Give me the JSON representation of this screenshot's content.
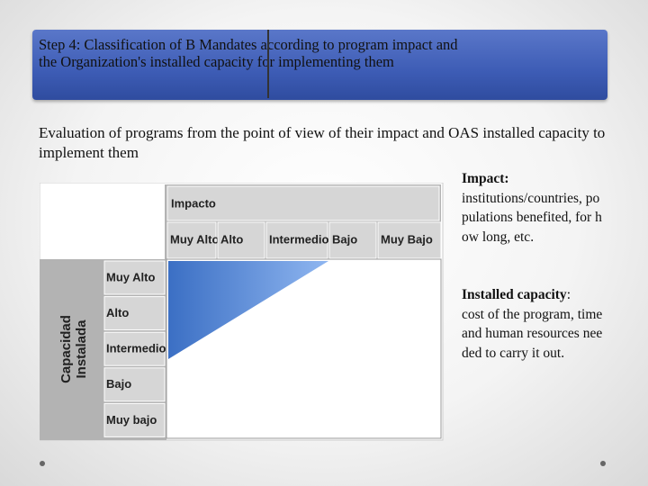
{
  "header": {
    "title": "Step 4: Classification of B Mandates according to program impact and the Organization's installed capacity for implementing them"
  },
  "intro": "Evaluation of programs from the point of view of their impact and OAS installed capacity to implement them",
  "matrix": {
    "impact_header": "Impacto",
    "impact_levels": [
      "Muy Alto",
      "Alto",
      "Intermedio",
      "Bajo",
      "Muy Bajo"
    ],
    "capacity_header_lines": [
      "Capacidad",
      "Instalada"
    ],
    "capacity_levels": [
      "Muy Alto",
      "Alto",
      "Intermedio",
      "Bajo",
      "Muy bajo"
    ]
  },
  "notes": [
    {
      "term": "Impact:",
      "text": "institutions/countries, populations benefited, for how long, etc."
    },
    {
      "term": "Installed capacity",
      "separator": ":",
      "text": "cost of the program, time and human resources needed to carry it out."
    }
  ]
}
